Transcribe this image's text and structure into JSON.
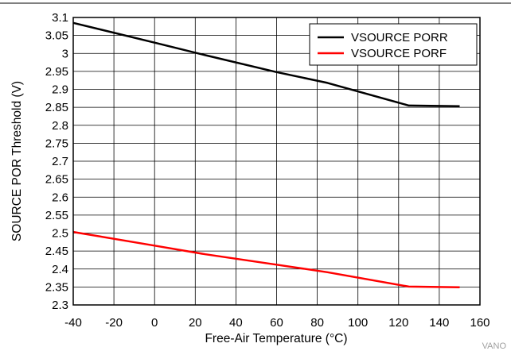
{
  "chart_data": {
    "type": "line",
    "title": "",
    "xlabel": "Free-Air Temperature (°C)",
    "ylabel": "SOURCE POR Threshold (V)",
    "xlim": [
      -40,
      160
    ],
    "ylim": [
      2.3,
      3.1
    ],
    "x_ticks": [
      "-40",
      "-20",
      "0",
      "20",
      "40",
      "60",
      "80",
      "100",
      "120",
      "140",
      "160"
    ],
    "y_ticks": [
      "3.1",
      "3.05",
      "3",
      "2.95",
      "2.9",
      "2.85",
      "2.8",
      "2.75",
      "2.7",
      "2.65",
      "2.6",
      "2.55",
      "2.5",
      "2.45",
      "2.4",
      "2.35",
      "2.3"
    ],
    "grid": true,
    "legend_position": "top-right",
    "series": [
      {
        "name": "VSOURCE PORR",
        "color": "#000000",
        "x": [
          -40,
          0,
          25,
          60,
          85,
          125,
          150
        ],
        "y": [
          3.085,
          3.03,
          2.995,
          2.948,
          2.918,
          2.855,
          2.853
        ]
      },
      {
        "name": "VSOURCE PORF",
        "color": "#ff0000",
        "x": [
          -40,
          0,
          25,
          60,
          85,
          125,
          150
        ],
        "y": [
          2.503,
          2.465,
          2.441,
          2.412,
          2.391,
          2.351,
          2.349
        ]
      }
    ]
  },
  "watermark": "VANO"
}
